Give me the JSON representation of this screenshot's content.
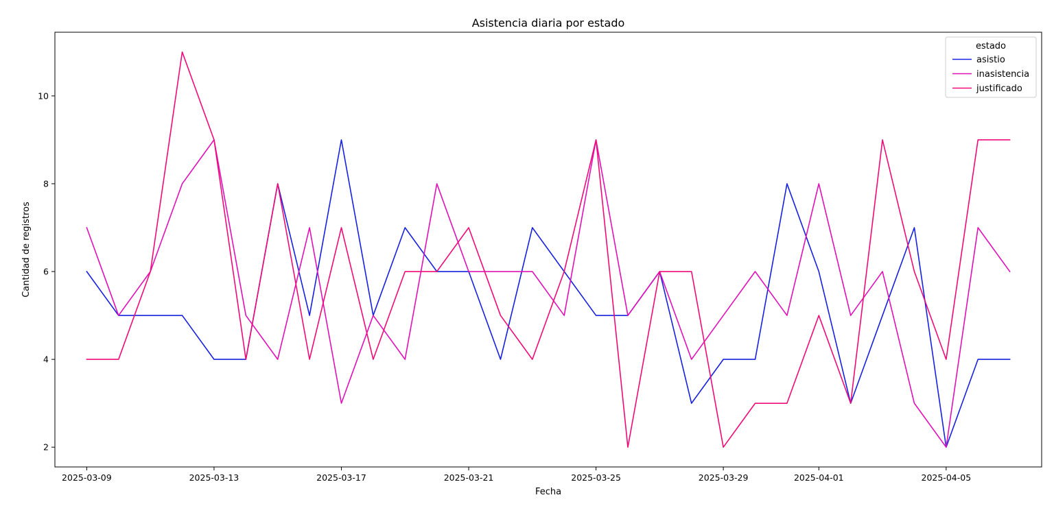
{
  "chart_data": {
    "type": "line",
    "title": "Asistencia diaria por estado",
    "xlabel": "Fecha",
    "ylabel": "Cantidad de registros",
    "x": [
      "2025-03-09",
      "2025-03-10",
      "2025-03-11",
      "2025-03-12",
      "2025-03-13",
      "2025-03-14",
      "2025-03-15",
      "2025-03-16",
      "2025-03-17",
      "2025-03-18",
      "2025-03-19",
      "2025-03-20",
      "2025-03-21",
      "2025-03-22",
      "2025-03-23",
      "2025-03-24",
      "2025-03-25",
      "2025-03-26",
      "2025-03-27",
      "2025-03-28",
      "2025-03-29",
      "2025-03-30",
      "2025-03-31",
      "2025-04-01",
      "2025-04-02",
      "2025-04-03",
      "2025-04-04",
      "2025-04-05",
      "2025-04-06",
      "2025-04-07"
    ],
    "xlim": [
      "2025-03-08",
      "2025-04-08"
    ],
    "x_ticks": [
      "2025-03-09",
      "2025-03-13",
      "2025-03-17",
      "2025-03-21",
      "2025-03-25",
      "2025-03-29",
      "2025-04-01",
      "2025-04-05"
    ],
    "ylim": [
      1.55,
      11.45
    ],
    "y_ticks": [
      2,
      4,
      6,
      8,
      10
    ],
    "grid": false,
    "legend": {
      "title": "estado",
      "placement": "top-right"
    },
    "series": [
      {
        "name": "asistio",
        "color": "#1520e0",
        "values": [
          6,
          5,
          5,
          5,
          4,
          4,
          8,
          5,
          9,
          5,
          7,
          6,
          6,
          4,
          7,
          6,
          5,
          5,
          6,
          3,
          4,
          4,
          8,
          6,
          3,
          5,
          7,
          2,
          4,
          4
        ]
      },
      {
        "name": "inasistencia",
        "color": "#e010b8",
        "values": [
          7,
          5,
          6,
          8,
          9,
          5,
          4,
          7,
          3,
          5,
          4,
          8,
          6,
          6,
          6,
          5,
          9,
          5,
          6,
          4,
          5,
          6,
          5,
          8,
          5,
          6,
          3,
          2,
          7,
          6
        ]
      },
      {
        "name": "justificado",
        "color": "#f00a78",
        "values": [
          4,
          4,
          6,
          11,
          9,
          4,
          8,
          4,
          7,
          4,
          6,
          6,
          7,
          5,
          4,
          6,
          9,
          2,
          6,
          6,
          2,
          3,
          3,
          5,
          3,
          9,
          6,
          4,
          9,
          9
        ]
      }
    ]
  }
}
